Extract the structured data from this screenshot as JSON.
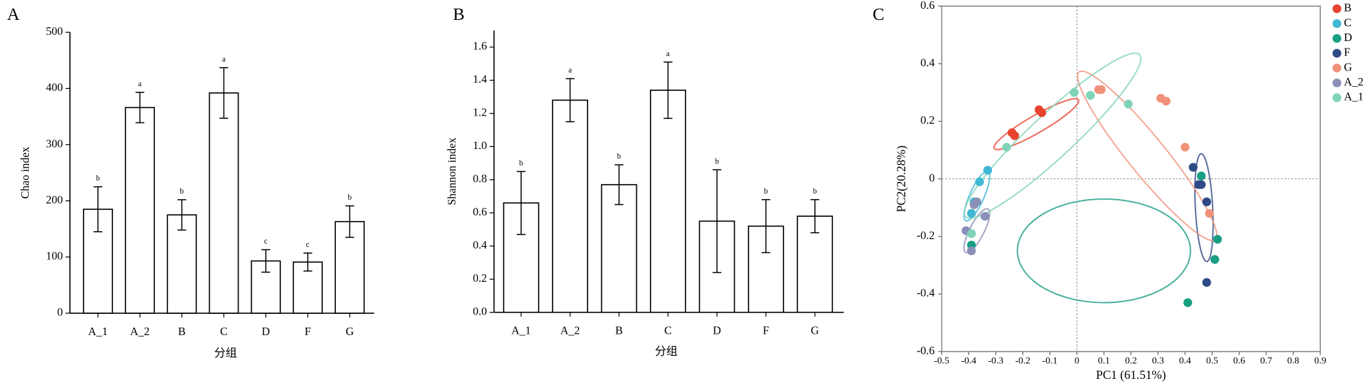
{
  "chart_data": [
    {
      "type": "bar",
      "panel_label": "A",
      "categories": [
        "A_1",
        "A_2",
        "B",
        "C",
        "D",
        "F",
        "G"
      ],
      "values": [
        185,
        366,
        175,
        392,
        93,
        91,
        163
      ],
      "errors": [
        40,
        27,
        27,
        45,
        20,
        16,
        28
      ],
      "letters": [
        "b",
        "a",
        "b",
        "a",
        "c",
        "c",
        "b"
      ],
      "ylim": [
        0,
        500
      ],
      "yticks": [
        0,
        100,
        200,
        300,
        400,
        500
      ],
      "y_label": "Chao index",
      "x_label": "分组",
      "color": "#ffffff",
      "edge_color": "#000000"
    },
    {
      "type": "bar",
      "panel_label": "B",
      "categories": [
        "A_1",
        "A_2",
        "B",
        "C",
        "D",
        "F",
        "G"
      ],
      "values": [
        0.66,
        1.28,
        0.77,
        1.34,
        0.55,
        0.52,
        0.58
      ],
      "errors": [
        0.19,
        0.13,
        0.12,
        0.17,
        0.31,
        0.16,
        0.1
      ],
      "letters": [
        "b",
        "a",
        "b",
        "a",
        "b",
        "b",
        "b"
      ],
      "ylim": [
        0,
        1.7
      ],
      "yticks": [
        {
          "value": 0,
          "label": "0.0"
        },
        0.2,
        0.4,
        0.6,
        0.8,
        {
          "value": 1,
          "label": "1.0"
        },
        1.2,
        1.4,
        1.6
      ],
      "y_label": "Shannon index",
      "x_label": "分组",
      "color": "#ffffff",
      "edge_color": "#000000"
    },
    {
      "type": "scatter",
      "panel_label": "C",
      "xlim": [
        -0.5,
        0.9
      ],
      "ylim": [
        -0.6,
        0.6
      ],
      "xticks": [
        -0.5,
        -0.4,
        -0.3,
        -0.2,
        -0.1,
        0,
        0.1,
        0.2,
        0.3,
        0.4,
        0.5,
        0.6,
        0.7,
        0.8,
        0.9
      ],
      "yticks": [
        -0.6,
        -0.4,
        -0.2,
        0,
        0.2,
        0.4,
        0.6
      ],
      "x_label": "PC1 (61.51%)",
      "y_label": "PC2(20.28%)",
      "zero_lines": true,
      "series": [
        {
          "name": "B",
          "color": "#e8432e",
          "x": [
            -0.14,
            -0.13,
            -0.23,
            -0.24
          ],
          "values": [
            0.24,
            0.23,
            0.15,
            0.16
          ],
          "ellipse": {
            "cx": -0.15,
            "cy": 0.19,
            "rx": 0.18,
            "ry": 0.03,
            "angle": -30
          }
        },
        {
          "name": "C",
          "color": "#3fb8d4",
          "x": [
            -0.33,
            -0.36,
            -0.38,
            -0.39
          ],
          "values": [
            0.03,
            -0.01,
            -0.08,
            -0.12
          ],
          "ellipse": {
            "cx": -0.37,
            "cy": -0.06,
            "rx": 0.1,
            "ry": 0.025,
            "angle": -66
          }
        },
        {
          "name": "D",
          "color": "#1a9e82",
          "x": [
            0.46,
            0.52,
            0.51,
            0.41,
            -0.39
          ],
          "values": [
            0.01,
            -0.21,
            -0.28,
            -0.43,
            -0.23
          ],
          "ellipse": {
            "cx": 0.1,
            "cy": -0.25,
            "rx": 0.32,
            "ry": 0.18,
            "angle": 0
          }
        },
        {
          "name": "F",
          "color": "#2e4a87",
          "x": [
            0.43,
            0.46,
            0.45,
            0.48,
            0.48
          ],
          "values": [
            0.04,
            -0.02,
            -0.02,
            -0.08,
            -0.36
          ],
          "ellipse": {
            "cx": 0.47,
            "cy": -0.1,
            "rx": 0.2,
            "ry": 0.03,
            "angle": 87
          }
        },
        {
          "name": "G",
          "color": "#f0927a",
          "x": [
            0.09,
            0.08,
            0.31,
            0.33,
            0.4,
            0.49
          ],
          "values": [
            0.31,
            0.31,
            0.28,
            0.27,
            0.11,
            -0.12
          ],
          "ellipse": {
            "cx": 0.26,
            "cy": 0.08,
            "rx": 0.4,
            "ry": 0.065,
            "angle": 51
          }
        },
        {
          "name": "A_2",
          "color": "#8a90b8",
          "x": [
            -0.34,
            -0.38,
            -0.37,
            -0.41,
            -0.39
          ],
          "values": [
            -0.13,
            -0.09,
            -0.08,
            -0.18,
            -0.25
          ],
          "ellipse": {
            "cx": -0.37,
            "cy": -0.18,
            "rx": 0.09,
            "ry": 0.025,
            "angle": -63
          }
        },
        {
          "name": "A_1",
          "color": "#7fd3b8",
          "x": [
            -0.01,
            0.05,
            0.19,
            -0.26,
            -0.39
          ],
          "values": [
            0.3,
            0.29,
            0.26,
            0.11,
            -0.19
          ],
          "ellipse": {
            "cx": -0.09,
            "cy": 0.15,
            "rx": 0.44,
            "ry": 0.075,
            "angle": -43
          }
        }
      ]
    }
  ]
}
